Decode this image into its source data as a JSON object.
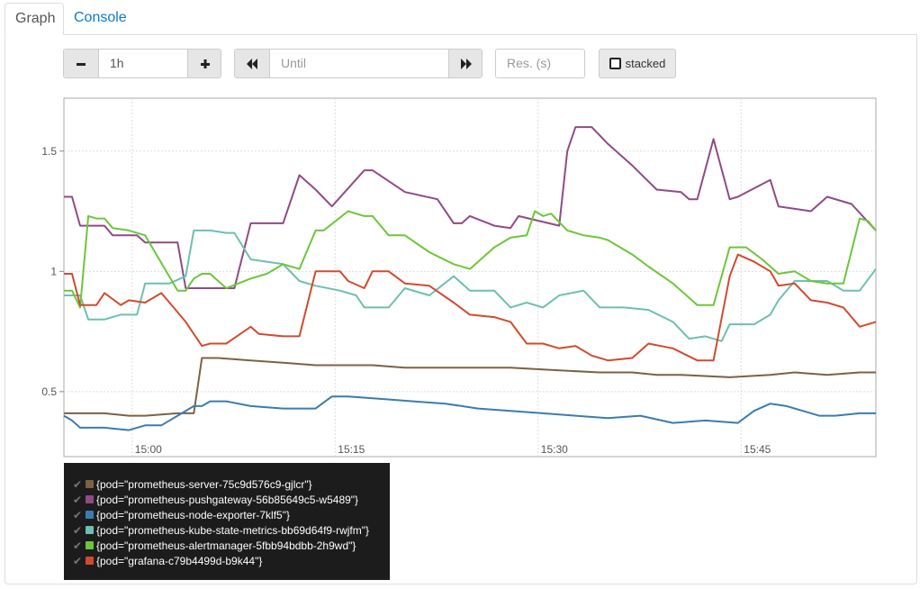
{
  "tabs": {
    "graph": "Graph",
    "console": "Console"
  },
  "controls": {
    "range_value": "1h",
    "until_placeholder": "Until",
    "res_placeholder": "Res. (s)",
    "stacked_label": "stacked"
  },
  "legend": [
    {
      "label": "{pod=\"prometheus-server-75c9d576c9-gjlcr\"}",
      "color": "#7d6144"
    },
    {
      "label": "{pod=\"prometheus-pushgateway-56b85649c5-w5489\"}",
      "color": "#8f4a87"
    },
    {
      "label": "{pod=\"prometheus-node-exporter-7klf5\"}",
      "color": "#3a7cb2"
    },
    {
      "label": "{pod=\"prometheus-kube-state-metrics-bb69d64f9-rwjfm\"}",
      "color": "#6cc0b0"
    },
    {
      "label": "{pod=\"prometheus-alertmanager-5fbb94bdbb-2h9wd\"}",
      "color": "#6dc63a"
    },
    {
      "label": "{pod=\"grafana-c79b4499d-b9k44\"}",
      "color": "#d04b2e"
    }
  ],
  "chart_data": {
    "type": "line",
    "x_ticks": [
      "15:00",
      "15:15",
      "15:30",
      "15:45"
    ],
    "y_ticks": [
      "0.5",
      "1",
      "1.5"
    ],
    "ylim": [
      0.23,
      1.72
    ],
    "grid": true,
    "series": [
      {
        "name": "{pod=\"prometheus-server-75c9d576c9-gjlcr\"}",
        "color": "#7d6144",
        "x": [
          0,
          5,
          8,
          10,
          14,
          16,
          17,
          19,
          23,
          27,
          31,
          32,
          35,
          38,
          42,
          47,
          55,
          60,
          66,
          70,
          73,
          76,
          82,
          87,
          90,
          94,
          98,
          100
        ],
        "y": [
          0.41,
          0.41,
          0.4,
          0.4,
          0.41,
          0.41,
          0.64,
          0.64,
          0.63,
          0.62,
          0.61,
          0.61,
          0.61,
          0.61,
          0.6,
          0.6,
          0.6,
          0.59,
          0.58,
          0.58,
          0.57,
          0.57,
          0.56,
          0.57,
          0.58,
          0.57,
          0.58,
          0.58
        ]
      },
      {
        "name": "{pod=\"prometheus-pushgateway-56b85649c5-w5489\"}",
        "color": "#8f4a87",
        "x": [
          0,
          1,
          2,
          5,
          6,
          9,
          10,
          14,
          15,
          17,
          18,
          21,
          23,
          24,
          27,
          29,
          31,
          33,
          37,
          38,
          42,
          46,
          48,
          49,
          50,
          53,
          55,
          56,
          61,
          62,
          63,
          65,
          67,
          70,
          73,
          76,
          77,
          78,
          80,
          82,
          83,
          87,
          88,
          92,
          94,
          97,
          100
        ],
        "y": [
          1.31,
          1.31,
          1.19,
          1.19,
          1.15,
          1.15,
          1.12,
          1.12,
          0.93,
          0.93,
          0.93,
          0.93,
          1.2,
          1.2,
          1.2,
          1.4,
          1.34,
          1.27,
          1.42,
          1.42,
          1.33,
          1.3,
          1.2,
          1.2,
          1.23,
          1.19,
          1.18,
          1.23,
          1.19,
          1.5,
          1.6,
          1.6,
          1.53,
          1.44,
          1.34,
          1.33,
          1.3,
          1.3,
          1.55,
          1.3,
          1.31,
          1.38,
          1.27,
          1.25,
          1.31,
          1.28,
          1.17
        ]
      },
      {
        "name": "{pod=\"prometheus-node-exporter-7klf5\"}",
        "color": "#3a7cb2",
        "x": [
          0,
          1,
          2,
          5,
          8,
          10,
          12,
          14,
          16,
          17,
          18,
          20,
          23,
          27,
          29,
          31,
          33,
          35,
          39,
          43,
          47,
          51,
          55,
          59,
          63,
          67,
          71,
          75,
          79,
          83,
          85,
          87,
          89,
          91,
          93,
          95,
          98,
          100
        ],
        "y": [
          0.4,
          0.38,
          0.35,
          0.35,
          0.34,
          0.36,
          0.36,
          0.4,
          0.44,
          0.44,
          0.46,
          0.46,
          0.44,
          0.43,
          0.43,
          0.43,
          0.48,
          0.48,
          0.47,
          0.46,
          0.45,
          0.43,
          0.42,
          0.41,
          0.4,
          0.39,
          0.4,
          0.37,
          0.38,
          0.37,
          0.42,
          0.45,
          0.44,
          0.42,
          0.4,
          0.4,
          0.41,
          0.41
        ]
      },
      {
        "name": "{pod=\"prometheus-kube-state-metrics-bb69d64f9-rwjfm\"}",
        "color": "#6cc0b0",
        "x": [
          0,
          2,
          3,
          5,
          7,
          9,
          10,
          13,
          15,
          16,
          18,
          20,
          21,
          23,
          25,
          27,
          29,
          31,
          34,
          36,
          37,
          40,
          42,
          45,
          48,
          50,
          53,
          55,
          57,
          59,
          61,
          64,
          66,
          69,
          72,
          75,
          77,
          79,
          81,
          82,
          85,
          87,
          88,
          90,
          92,
          94,
          96,
          98,
          100
        ],
        "y": [
          0.9,
          0.9,
          0.8,
          0.8,
          0.82,
          0.82,
          0.95,
          0.95,
          0.98,
          1.17,
          1.17,
          1.16,
          1.16,
          1.05,
          1.04,
          1.03,
          0.96,
          0.94,
          0.92,
          0.9,
          0.85,
          0.85,
          0.93,
          0.9,
          0.98,
          0.92,
          0.92,
          0.85,
          0.87,
          0.85,
          0.9,
          0.92,
          0.85,
          0.85,
          0.84,
          0.79,
          0.72,
          0.73,
          0.71,
          0.78,
          0.78,
          0.82,
          0.88,
          0.96,
          0.96,
          0.96,
          0.92,
          0.92,
          1.01
        ]
      },
      {
        "name": "{pod=\"prometheus-alertmanager-5fbb94bdbb-2h9wd\"}",
        "color": "#6dc63a",
        "x": [
          0,
          1,
          2,
          3,
          4,
          5,
          6,
          8,
          10,
          14,
          15,
          16,
          17,
          18,
          20,
          23,
          25,
          27,
          29,
          31,
          32,
          35,
          37,
          38,
          40,
          42,
          45,
          48,
          50,
          53,
          55,
          57,
          58,
          59,
          60,
          62,
          64,
          66,
          67,
          70,
          72,
          75,
          78,
          80,
          82,
          84,
          86,
          88,
          90,
          92,
          94,
          96,
          98,
          99,
          100
        ],
        "y": [
          0.92,
          0.92,
          0.85,
          1.23,
          1.22,
          1.22,
          1.18,
          1.17,
          1.15,
          0.92,
          0.92,
          0.97,
          0.99,
          0.99,
          0.93,
          0.97,
          0.99,
          1.03,
          1.01,
          1.17,
          1.17,
          1.25,
          1.23,
          1.23,
          1.15,
          1.15,
          1.08,
          1.03,
          1.01,
          1.1,
          1.14,
          1.15,
          1.25,
          1.23,
          1.24,
          1.17,
          1.15,
          1.14,
          1.13,
          1.07,
          1.02,
          0.95,
          0.86,
          0.86,
          1.1,
          1.1,
          1.05,
          0.99,
          1.0,
          0.96,
          0.95,
          0.95,
          1.22,
          1.21,
          1.17
        ]
      },
      {
        "name": "{pod=\"grafana-c79b4499d-b9k44\"}",
        "color": "#d04b2e",
        "x": [
          0,
          1,
          2,
          4,
          5,
          7,
          8,
          10,
          12,
          13,
          15,
          17,
          18,
          20,
          23,
          24,
          27,
          29,
          31,
          34,
          35,
          37,
          38,
          40,
          42,
          45,
          48,
          50,
          53,
          55,
          57,
          59,
          61,
          63,
          65,
          67,
          70,
          72,
          75,
          78,
          80,
          82,
          83,
          85,
          87,
          88,
          90,
          92,
          94,
          96,
          98,
          100
        ],
        "y": [
          0.99,
          0.99,
          0.86,
          0.86,
          0.91,
          0.86,
          0.88,
          0.87,
          0.91,
          0.87,
          0.79,
          0.69,
          0.7,
          0.7,
          0.77,
          0.74,
          0.73,
          0.73,
          1.0,
          1.0,
          0.96,
          0.93,
          1.0,
          1.0,
          0.95,
          0.94,
          0.87,
          0.82,
          0.81,
          0.79,
          0.7,
          0.7,
          0.68,
          0.69,
          0.65,
          0.63,
          0.64,
          0.7,
          0.68,
          0.63,
          0.63,
          0.98,
          1.07,
          1.04,
          1.0,
          0.94,
          0.95,
          0.88,
          0.87,
          0.85,
          0.77,
          0.79
        ]
      }
    ]
  }
}
